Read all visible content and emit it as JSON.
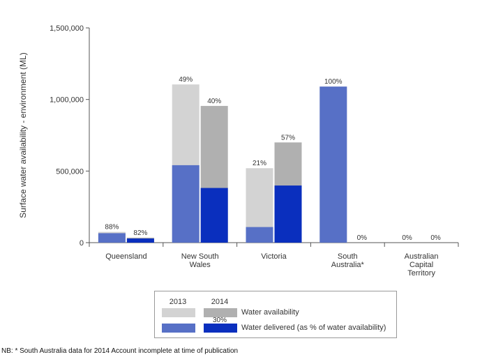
{
  "chart_data": {
    "type": "bar",
    "title": "",
    "ylabel": "Surface water availability - environment (ML)",
    "xlabel": "",
    "ylim": [
      0,
      1500000
    ],
    "yticks": [
      0,
      500000,
      1000000,
      1500000
    ],
    "ytick_labels": [
      "0",
      "500,000",
      "1,000,000",
      "1,500,000"
    ],
    "categories": [
      "Queensland",
      "New South Wales",
      "Victoria",
      "South Australia*",
      "Australian Capital Territory"
    ],
    "category_label_lines": [
      [
        "Queensland"
      ],
      [
        "New South",
        "Wales"
      ],
      [
        "Victoria"
      ],
      [
        "South",
        "Australia*"
      ],
      [
        "Australian",
        "Capital",
        "Territory"
      ]
    ],
    "years": [
      "2013",
      "2014"
    ],
    "series": [
      {
        "name": "Water availability 2013",
        "year": "2013",
        "kind": "availability",
        "color": "#d3d3d3",
        "values": [
          75000,
          1105000,
          520000,
          1090000,
          0
        ]
      },
      {
        "name": "Water delivered 2013",
        "year": "2013",
        "kind": "delivered",
        "color": "#5770c6",
        "values": [
          66000,
          541000,
          109000,
          1090000,
          0
        ]
      },
      {
        "name": "Water availability 2014",
        "year": "2014",
        "kind": "availability",
        "color": "#b0b0b0",
        "values": [
          35000,
          955000,
          700000,
          0,
          0
        ]
      },
      {
        "name": "Water delivered 2014",
        "year": "2014",
        "kind": "delivered",
        "color": "#0a2fbe",
        "values": [
          29000,
          382000,
          399000,
          0,
          0
        ]
      }
    ],
    "pct_labels": {
      "2013": [
        "88%",
        "49%",
        "21%",
        "100%",
        "0%"
      ],
      "2014": [
        "82%",
        "40%",
        "57%",
        "0%",
        "0%"
      ]
    }
  },
  "legend": {
    "year_2013": "2013",
    "year_2014": "2014",
    "availability_label": "Water availability",
    "delivered_label": "Water delivered (as % of water availability)",
    "sample_pct": "30%",
    "colors": {
      "availability_2013": "#d3d3d3",
      "availability_2014": "#b0b0b0",
      "delivered_2013": "#5770c6",
      "delivered_2014": "#0a2fbe"
    }
  },
  "footnote": "NB: * South Australia data for 2014 Account incomplete at time of publication"
}
